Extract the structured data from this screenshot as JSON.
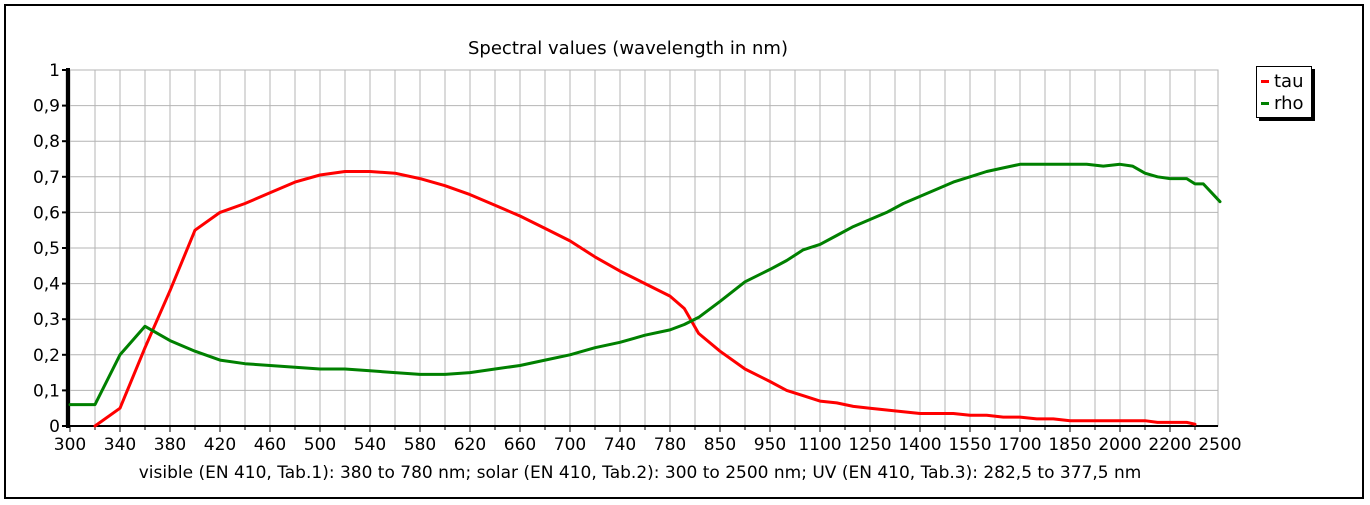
{
  "chart_data": {
    "type": "line",
    "title": "Spectral values  (wavelength in nm)",
    "footnote": "visible (EN 410, Tab.1): 380 to 780 nm;  solar (EN 410, Tab.2): 300 to 2500 nm; UV (EN 410, Tab.3): 282,5 to 377,5 nm",
    "x_scale": "piecewise: 300-820 nm step 20 nm per tick, 850-2500 nm step 50 nm per tick, both at equal tick spacing",
    "x_ticks": [
      "300",
      "340",
      "380",
      "420",
      "460",
      "500",
      "540",
      "580",
      "620",
      "660",
      "700",
      "740",
      "780",
      "850",
      "950",
      "1100",
      "1250",
      "1400",
      "1550",
      "1700",
      "1850",
      "2000",
      "2200",
      "2500"
    ],
    "ylim": [
      0,
      1
    ],
    "y_ticks": [
      "0",
      "0,1",
      "0,2",
      "0,3",
      "0,4",
      "0,5",
      "0,6",
      "0,7",
      "0,8",
      "0,9",
      "1"
    ],
    "grid": true,
    "legend_position": "top-right outside plot",
    "series": [
      {
        "name": "tau",
        "color": "#ff0000",
        "x": [
          320,
          340,
          360,
          380,
          400,
          420,
          440,
          460,
          480,
          500,
          520,
          540,
          560,
          580,
          600,
          620,
          640,
          660,
          680,
          700,
          720,
          740,
          760,
          780,
          800,
          820,
          850,
          900,
          950,
          1000,
          1050,
          1100,
          1150,
          1200,
          1250,
          1300,
          1350,
          1400,
          1450,
          1500,
          1550,
          1600,
          1650,
          1700,
          1750,
          1800,
          1850,
          1900,
          1950,
          2000,
          2050,
          2100,
          2150,
          2200,
          2250,
          2300,
          2350
        ],
        "values": [
          0.0,
          0.05,
          0.22,
          0.38,
          0.55,
          0.6,
          0.625,
          0.655,
          0.685,
          0.705,
          0.715,
          0.715,
          0.71,
          0.695,
          0.675,
          0.65,
          0.62,
          0.59,
          0.555,
          0.52,
          0.475,
          0.435,
          0.4,
          0.365,
          0.33,
          0.26,
          0.21,
          0.16,
          0.125,
          0.1,
          0.085,
          0.07,
          0.065,
          0.055,
          0.05,
          0.045,
          0.04,
          0.035,
          0.035,
          0.035,
          0.03,
          0.03,
          0.025,
          0.025,
          0.02,
          0.02,
          0.015,
          0.015,
          0.015,
          0.015,
          0.015,
          0.015,
          0.01,
          0.01,
          0.01,
          0.01,
          0.005
        ]
      },
      {
        "name": "rho",
        "color": "#008000",
        "x": [
          300,
          310,
          320,
          340,
          360,
          380,
          400,
          420,
          440,
          460,
          480,
          500,
          520,
          540,
          560,
          580,
          600,
          620,
          640,
          660,
          680,
          700,
          720,
          740,
          760,
          780,
          800,
          820,
          850,
          900,
          950,
          1000,
          1050,
          1100,
          1150,
          1200,
          1250,
          1300,
          1350,
          1400,
          1450,
          1500,
          1550,
          1600,
          1650,
          1700,
          1750,
          1800,
          1850,
          1900,
          1950,
          2000,
          2050,
          2100,
          2150,
          2200,
          2250,
          2300,
          2350,
          2400,
          2450,
          2500
        ],
        "values": [
          0.06,
          0.06,
          0.06,
          0.2,
          0.28,
          0.24,
          0.21,
          0.185,
          0.175,
          0.17,
          0.165,
          0.16,
          0.16,
          0.155,
          0.15,
          0.145,
          0.145,
          0.15,
          0.16,
          0.17,
          0.185,
          0.2,
          0.22,
          0.235,
          0.255,
          0.27,
          0.285,
          0.305,
          0.35,
          0.405,
          0.44,
          0.465,
          0.495,
          0.51,
          0.535,
          0.56,
          0.58,
          0.6,
          0.625,
          0.645,
          0.665,
          0.685,
          0.7,
          0.715,
          0.725,
          0.735,
          0.735,
          0.735,
          0.735,
          0.735,
          0.73,
          0.735,
          0.73,
          0.71,
          0.7,
          0.695,
          0.695,
          0.695,
          0.68,
          0.68,
          0.655,
          0.63
        ]
      }
    ]
  },
  "legend": {
    "items": [
      {
        "label": "tau",
        "color": "#ff0000"
      },
      {
        "label": "rho",
        "color": "#008000"
      }
    ]
  }
}
